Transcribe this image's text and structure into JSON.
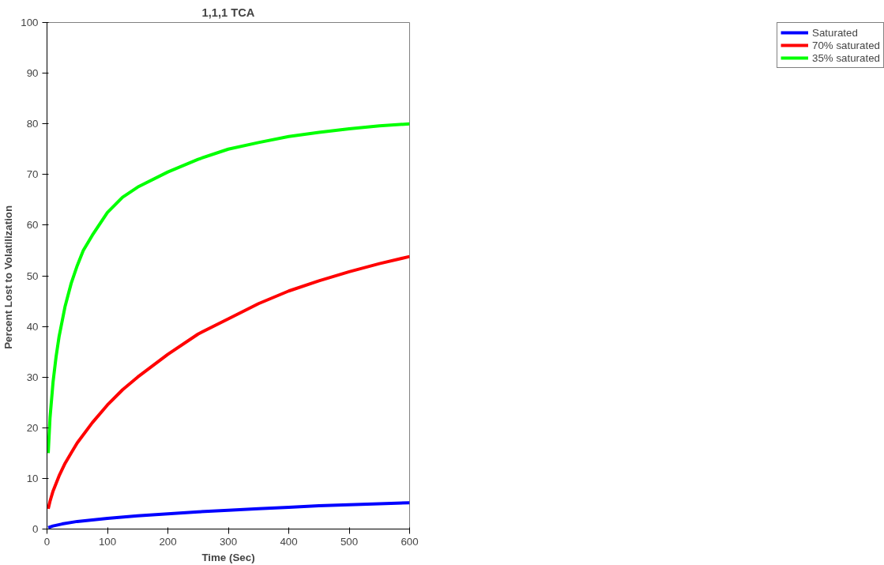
{
  "chart_data": {
    "type": "line",
    "title": "1,1,1 TCA",
    "xlabel": "Time (Sec)",
    "ylabel": "Percent  Lost to Volatilization",
    "xlim": [
      0,
      600
    ],
    "ylim": [
      0,
      100
    ],
    "xticks": [
      0,
      100,
      200,
      300,
      400,
      500,
      600
    ],
    "yticks": [
      0,
      10,
      20,
      30,
      40,
      50,
      60,
      70,
      80,
      90,
      100
    ],
    "grid": false,
    "legend": "right",
    "marker": "none",
    "line_style": "solid",
    "series": [
      {
        "name": "Saturated",
        "color": "#0000ff",
        "x": [
          2,
          10,
          25,
          50,
          75,
          100,
          150,
          200,
          250,
          300,
          350,
          400,
          450,
          500,
          550,
          600
        ],
        "values": [
          0.3,
          0.6,
          1.0,
          1.5,
          1.8,
          2.1,
          2.6,
          3.0,
          3.4,
          3.7,
          4.0,
          4.3,
          4.6,
          4.8,
          5.0,
          5.2
        ]
      },
      {
        "name": "70% saturated",
        "color": "#ff0000",
        "x": [
          2,
          5,
          10,
          20,
          30,
          40,
          50,
          75,
          100,
          125,
          150,
          200,
          250,
          300,
          350,
          400,
          450,
          500,
          550,
          600
        ],
        "values": [
          4,
          5.5,
          7.5,
          10.5,
          13,
          15,
          17,
          21,
          24.5,
          27.5,
          30,
          34.5,
          38.5,
          41.5,
          44.5,
          47,
          49,
          50.8,
          52.4,
          53.8
        ]
      },
      {
        "name": "35% saturated",
        "color": "#00ff00",
        "x": [
          2,
          5,
          10,
          15,
          20,
          30,
          40,
          50,
          60,
          75,
          100,
          125,
          150,
          200,
          250,
          300,
          350,
          400,
          450,
          500,
          550,
          600
        ],
        "values": [
          15,
          22,
          29,
          34,
          38,
          44,
          48.5,
          52,
          55,
          58,
          62.5,
          65.5,
          67.5,
          70.5,
          73,
          75,
          76.3,
          77.5,
          78.3,
          79,
          79.6,
          80
        ]
      }
    ]
  }
}
